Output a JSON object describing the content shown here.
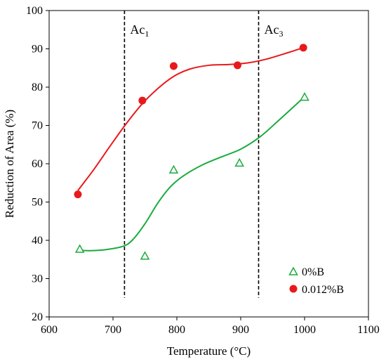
{
  "chart_data": {
    "type": "scatter",
    "xlabel": "Temperature (°C)",
    "ylabel": "Reduction of Area (%)",
    "xlim": [
      600,
      1100
    ],
    "ylim": [
      20,
      100
    ],
    "xticks": [
      600,
      700,
      800,
      900,
      1000,
      1100
    ],
    "yticks": [
      20,
      30,
      40,
      50,
      60,
      70,
      80,
      90,
      100
    ],
    "grid": false,
    "legend_position": "bottom-right",
    "series": [
      {
        "name": "0%B",
        "marker": "open-triangle",
        "color": "#1aab3e",
        "x": [
          648,
          750,
          795,
          898,
          1000
        ],
        "y": [
          37.8,
          36.0,
          58.5,
          60.3,
          77.5
        ],
        "fit_x": [
          648,
          665,
          690,
          715,
          730,
          750,
          770,
          790,
          810,
          840,
          870,
          900,
          930,
          960,
          1000
        ],
        "fit_y": [
          37.4,
          37.3,
          37.6,
          38.4,
          40.0,
          44.3,
          49.7,
          54.0,
          56.8,
          59.7,
          61.8,
          63.8,
          67.0,
          71.4,
          77.5
        ]
      },
      {
        "name": "0.012%B",
        "marker": "filled-circle",
        "color": "#e8191c",
        "x": [
          645,
          746,
          795,
          895,
          998
        ],
        "y": [
          52.0,
          76.5,
          85.5,
          85.7,
          90.3
        ],
        "fit_x": [
          645,
          670,
          695,
          720,
          745,
          770,
          795,
          820,
          850,
          880,
          910,
          940,
          970,
          998
        ],
        "fit_y": [
          53.0,
          58.5,
          64.5,
          70.3,
          75.5,
          79.6,
          82.8,
          84.7,
          85.7,
          85.9,
          86.3,
          87.3,
          88.8,
          90.3
        ]
      }
    ],
    "reference_lines": [
      {
        "x": 718,
        "label_main": "Ac",
        "label_sub": "1",
        "y_from": 25,
        "y_to": 100
      },
      {
        "x": 928,
        "label_main": "Ac",
        "label_sub": "3",
        "y_from": 25,
        "y_to": 100
      }
    ]
  }
}
